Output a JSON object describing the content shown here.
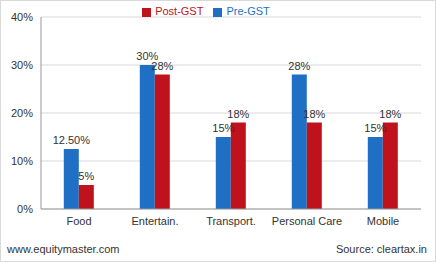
{
  "chart_data": {
    "type": "bar",
    "categories": [
      "Food",
      "Entertain.",
      "Transport.",
      "Personal Care",
      "Mobile"
    ],
    "series": [
      {
        "name": "Pre-GST",
        "color": "#1f6fc5",
        "values": [
          12.5,
          30,
          15,
          28,
          15
        ],
        "value_labels": [
          "12.50%",
          "30%",
          "15%",
          "28%",
          "15%"
        ]
      },
      {
        "name": "Post-GST",
        "color": "#c0121c",
        "values": [
          5,
          28,
          18,
          18,
          18
        ],
        "value_labels": [
          "5%",
          "28%",
          "18%",
          "18%",
          "18%"
        ]
      }
    ],
    "ylim": [
      0,
      40
    ],
    "yticks": [
      {
        "value": 0,
        "label": "0%"
      },
      {
        "value": 10,
        "label": "10%"
      },
      {
        "value": 20,
        "label": "20%"
      },
      {
        "value": 30,
        "label": "30%"
      },
      {
        "value": 40,
        "label": "40%"
      }
    ],
    "grid": true,
    "legend": "top",
    "data_labels": true,
    "annotations": [
      "www.equitymaster.com",
      "Source: cleartax.in"
    ]
  }
}
